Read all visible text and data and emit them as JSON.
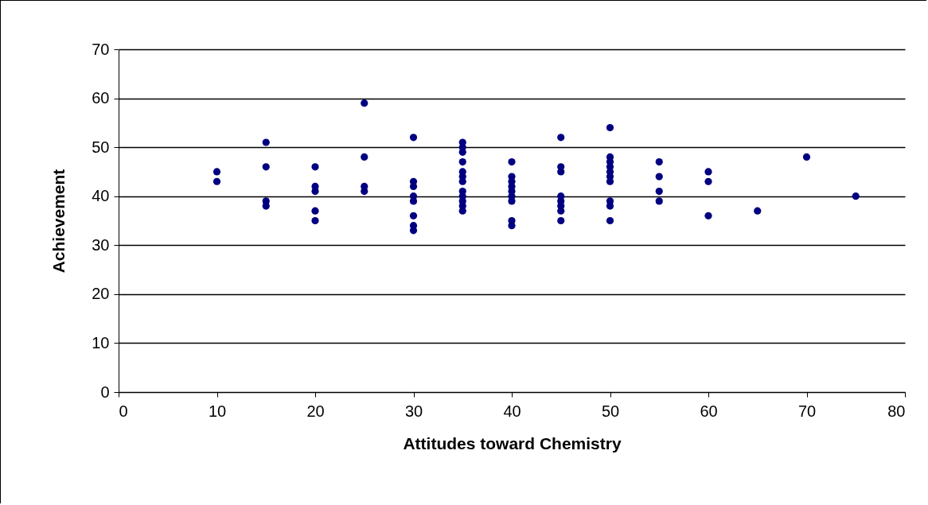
{
  "chart_data": {
    "type": "scatter",
    "xlabel": "Attitudes toward Chemistry",
    "ylabel": "Achievement",
    "marker": "circle",
    "grid": "y",
    "legend": false,
    "xlim": [
      0,
      80
    ],
    "xticks": [
      0,
      10,
      20,
      30,
      40,
      50,
      60,
      70,
      80
    ],
    "ylim": [
      0,
      70
    ],
    "yticks": [
      0,
      10,
      20,
      30,
      40,
      50,
      60,
      70
    ],
    "series": [
      {
        "color": "#000080",
        "x": [
          10,
          10,
          15,
          15,
          15,
          15,
          20,
          20,
          20,
          20,
          20,
          25,
          25,
          25,
          25,
          30,
          30,
          30,
          30,
          30,
          30,
          30,
          30,
          35,
          35,
          35,
          35,
          35,
          35,
          35,
          35,
          35,
          35,
          35,
          35,
          40,
          40,
          40,
          40,
          40,
          40,
          40,
          40,
          40,
          45,
          45,
          45,
          45,
          45,
          45,
          45,
          45,
          50,
          50,
          50,
          50,
          50,
          50,
          50,
          50,
          50,
          50,
          55,
          55,
          55,
          55,
          60,
          60,
          60,
          65,
          70,
          75
        ],
        "values": [
          45,
          43,
          51,
          46,
          39,
          38,
          46,
          42,
          41,
          37,
          35,
          59,
          48,
          42,
          41,
          52,
          43,
          42,
          40,
          39,
          36,
          34,
          33,
          51,
          50,
          49,
          47,
          45,
          44,
          43,
          41,
          40,
          39,
          38,
          37,
          47,
          44,
          43,
          42,
          41,
          40,
          39,
          35,
          34,
          52,
          46,
          45,
          40,
          39,
          38,
          37,
          35,
          54,
          48,
          47,
          46,
          45,
          44,
          43,
          39,
          38,
          35,
          47,
          44,
          41,
          39,
          45,
          43,
          36,
          37,
          48,
          40
        ]
      }
    ]
  }
}
